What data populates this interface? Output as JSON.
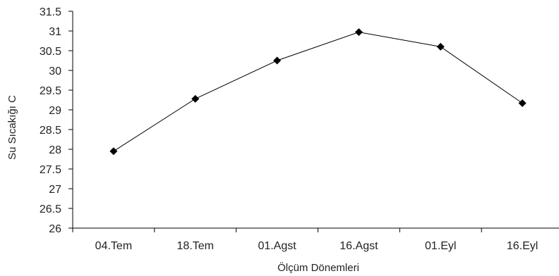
{
  "chart_data": {
    "type": "line",
    "title": "",
    "xlabel": "Ölçüm Dönemleri",
    "ylabel": "Su Sıcakığı C",
    "categories": [
      "04.Tem",
      "18.Tem",
      "01.Agst",
      "16.Agst",
      "01.Eyl",
      "16.Eyl"
    ],
    "series": [
      {
        "values": [
          27.95,
          29.28,
          30.25,
          30.97,
          30.6,
          29.17
        ]
      }
    ],
    "ylim": [
      26,
      31.5
    ],
    "yticks": [
      "26",
      "26.5",
      "27",
      "27.5",
      "28",
      "28.5",
      "29",
      "29.5",
      "30",
      "30.5",
      "31",
      "31.5"
    ],
    "grid": false,
    "legend": "none",
    "marker": "diamond",
    "colors": {
      "line": "#000000",
      "marker": "#000000",
      "axis": "#000000"
    }
  }
}
